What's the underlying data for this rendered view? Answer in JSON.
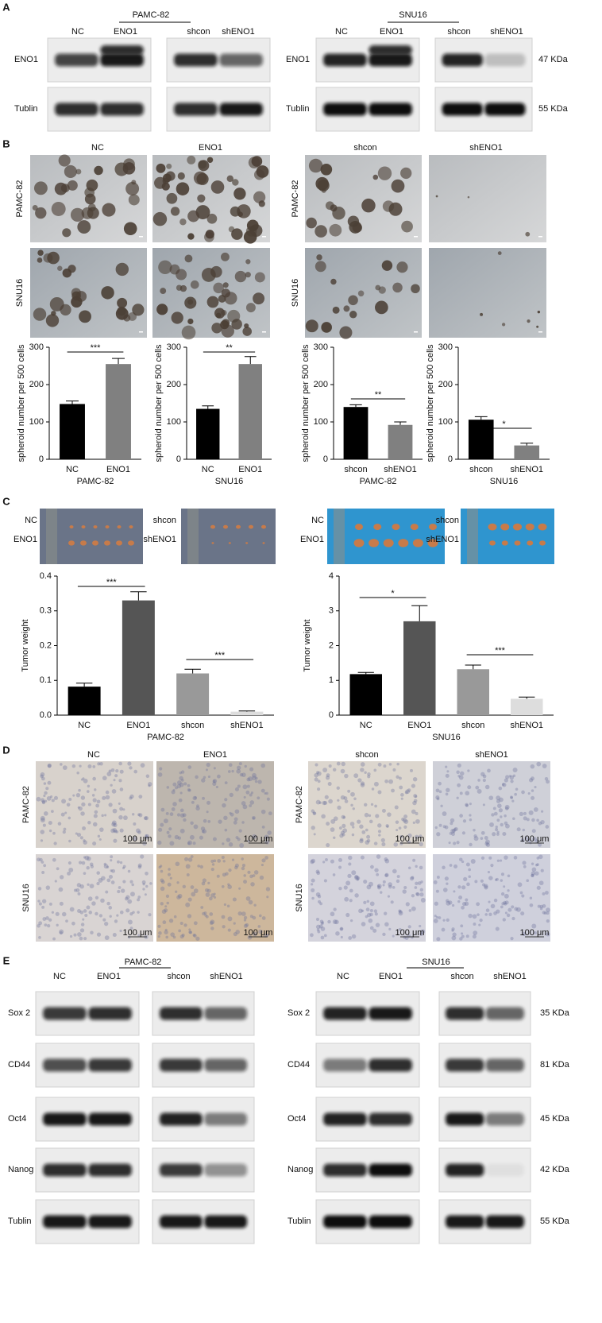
{
  "panel_a": {
    "label": "A",
    "groups": [
      "PAMC-82",
      "SNU16"
    ],
    "lanes": [
      "NC",
      "ENO1",
      "shcon",
      "shENO1"
    ],
    "rows": [
      "ENO1",
      "Tublin"
    ],
    "sizes": [
      "47 KDa",
      "55 KDa"
    ]
  },
  "panel_b": {
    "label": "B",
    "columns": [
      "NC",
      "ENO1",
      "shcon",
      "shENO1"
    ],
    "rows": [
      "PAMC-82",
      "SNU16"
    ]
  },
  "panel_c": {
    "label": "C",
    "groups": [
      {
        "top": "NC",
        "bottom": "ENO1"
      },
      {
        "top": "shcon",
        "bottom": "shENO1"
      }
    ]
  },
  "panel_d": {
    "label": "D",
    "columns": [
      "NC",
      "ENO1",
      "shcon",
      "shENO1"
    ],
    "rows": [
      "PAMC-82",
      "SNU16"
    ],
    "scale": "100 μm"
  },
  "panel_e": {
    "label": "E",
    "groups": [
      "PAMC-82",
      "SNU16"
    ],
    "lanes": [
      "NC",
      "ENO1",
      "shcon",
      "shENO1"
    ],
    "rows": [
      "Sox 2",
      "CD44",
      "Oct4",
      "Nanog",
      "Tublin"
    ],
    "sizes": [
      "35 KDa",
      "81 KDa",
      "45 KDa",
      "42 KDa",
      "55 KDa"
    ]
  },
  "chart_data": [
    {
      "type": "bar",
      "y_label": "spheroid number per 500 cells",
      "x_label": "PAMC-82",
      "categories": [
        "NC",
        "ENO1"
      ],
      "values": [
        148,
        255
      ],
      "errors": [
        8,
        15
      ],
      "colors": [
        "#000000",
        "#808080"
      ],
      "ylim": [
        0,
        300
      ],
      "yticks": [
        0,
        100,
        200,
        300
      ],
      "annotations": [
        "***"
      ]
    },
    {
      "type": "bar",
      "y_label": "spheroid number per 500 cells",
      "x_label": "SNU16",
      "categories": [
        "NC",
        "ENO1"
      ],
      "values": [
        135,
        255
      ],
      "errors": [
        8,
        20
      ],
      "colors": [
        "#000000",
        "#808080"
      ],
      "ylim": [
        0,
        300
      ],
      "yticks": [
        0,
        100,
        200,
        300
      ],
      "annotations": [
        "**"
      ]
    },
    {
      "type": "bar",
      "y_label": "spheroid number per 500 cells",
      "x_label": "PAMC-82",
      "categories": [
        "shcon",
        "shENO1"
      ],
      "values": [
        140,
        92
      ],
      "errors": [
        6,
        8
      ],
      "colors": [
        "#000000",
        "#808080"
      ],
      "ylim": [
        0,
        300
      ],
      "yticks": [
        0,
        100,
        200,
        300
      ],
      "annotations": [
        "**"
      ]
    },
    {
      "type": "bar",
      "y_label": "spheroid number per 500 cells",
      "x_label": "SNU16",
      "categories": [
        "shcon",
        "shENO1"
      ],
      "values": [
        106,
        37
      ],
      "errors": [
        8,
        6
      ],
      "colors": [
        "#000000",
        "#808080"
      ],
      "ylim": [
        0,
        300
      ],
      "yticks": [
        0,
        100,
        200,
        300
      ],
      "annotations": [
        "*"
      ]
    },
    {
      "type": "bar",
      "y_label": "Tumor weight",
      "x_label": "PAMC-82",
      "categories": [
        "NC",
        "ENO1",
        "shcon",
        "shENO1"
      ],
      "values": [
        0.082,
        0.33,
        0.12,
        0.01
      ],
      "errors": [
        0.01,
        0.025,
        0.012,
        0.002
      ],
      "colors": [
        "#000000",
        "#555555",
        "#999999",
        "#dddddd"
      ],
      "ylim": [
        0,
        0.4
      ],
      "yticks": [
        {
          "value": 0,
          "label": "0.0"
        },
        0.1,
        0.2,
        0.3,
        0.4
      ],
      "annotations": [
        "***",
        "***"
      ]
    },
    {
      "type": "bar",
      "y_label": "Tumor weight",
      "x_label": "SNU16",
      "categories": [
        "NC",
        "ENO1",
        "shcon",
        "shENO1"
      ],
      "values": [
        1.18,
        2.7,
        1.32,
        0.47
      ],
      "errors": [
        0.05,
        0.45,
        0.12,
        0.05
      ],
      "colors": [
        "#000000",
        "#555555",
        "#999999",
        "#dddddd"
      ],
      "ylim": [
        0,
        4
      ],
      "yticks": [
        0,
        1,
        2,
        3,
        4
      ],
      "annotations": [
        "*",
        "***"
      ]
    }
  ]
}
